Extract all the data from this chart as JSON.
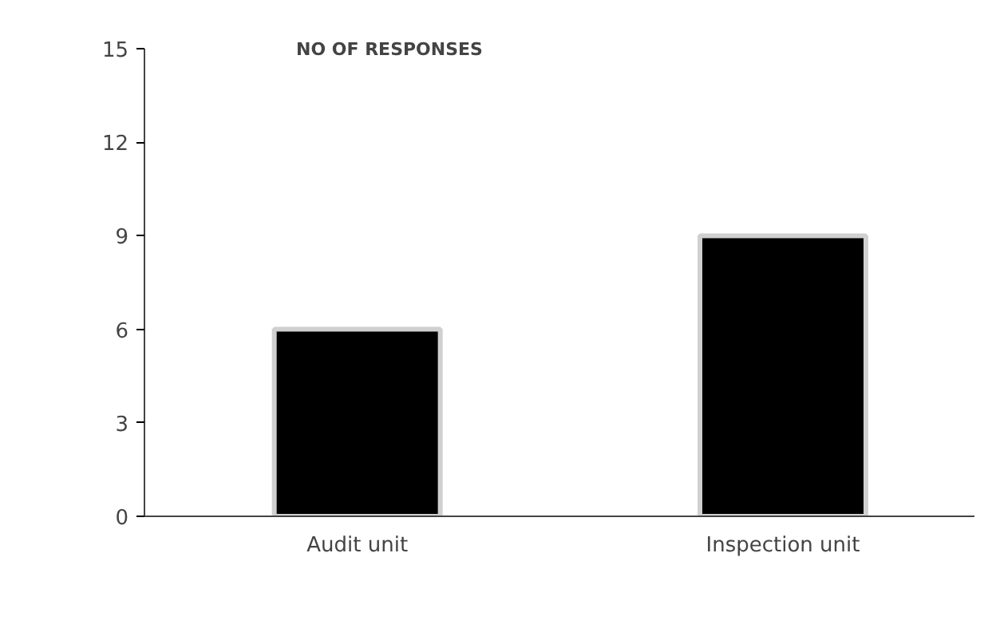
{
  "chart_data": {
    "type": "bar",
    "title": "NO OF RESPONSES",
    "categories": [
      "Audit unit",
      "Inspection unit"
    ],
    "values": [
      6,
      9
    ],
    "color": "#000000",
    "ylim": [
      0,
      15
    ],
    "yticks": [
      0,
      3,
      6,
      9,
      12,
      15
    ],
    "grid": false
  }
}
